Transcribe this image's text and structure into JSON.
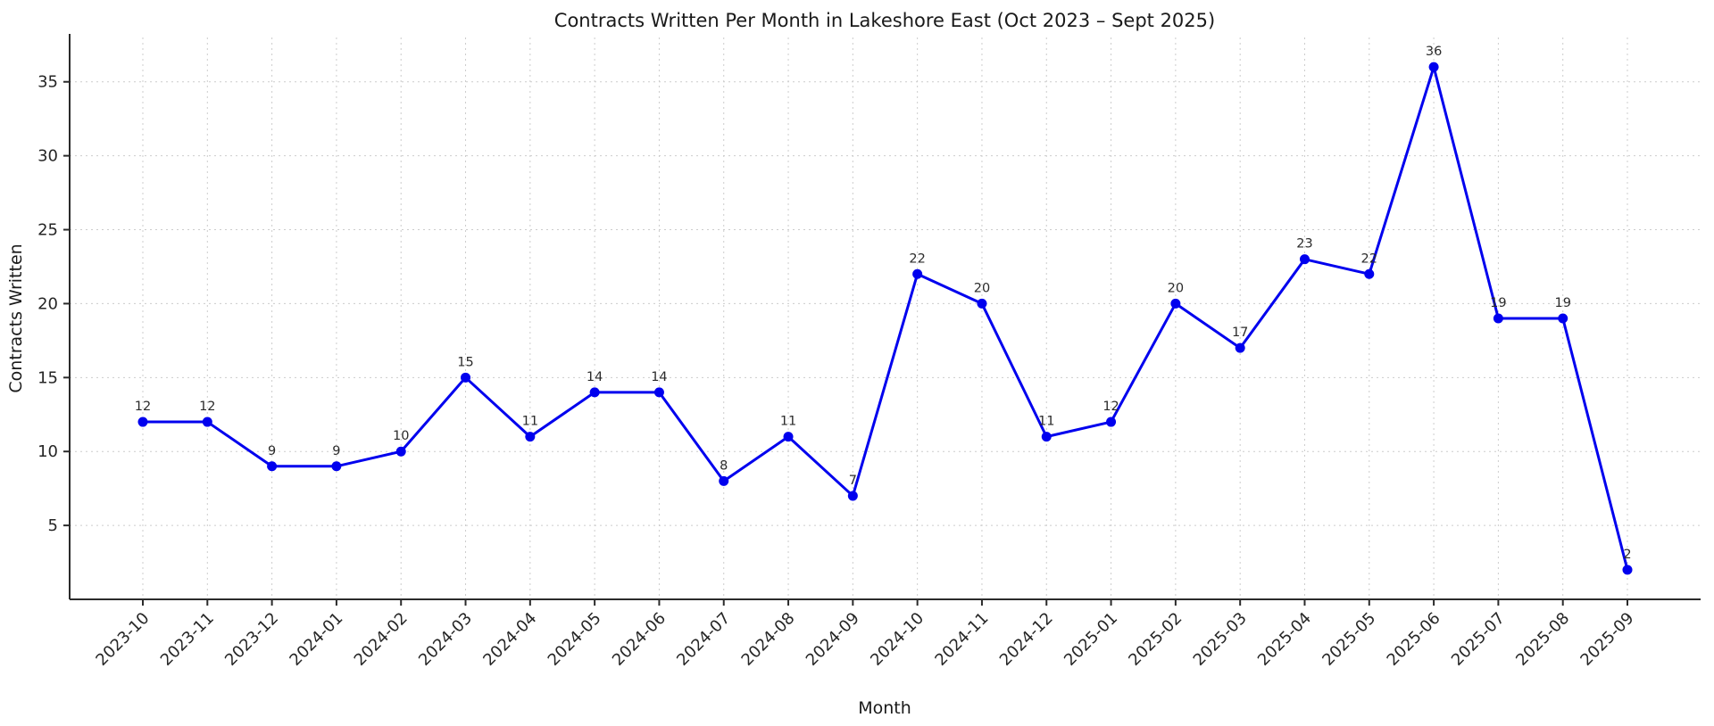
{
  "chart_data": {
    "type": "line",
    "title": "Contracts Written Per Month in Lakeshore East (Oct 2023 – Sept 2025)",
    "xlabel": "Month",
    "ylabel": "Contracts Written",
    "categories": [
      "2023-10",
      "2023-11",
      "2023-12",
      "2024-01",
      "2024-02",
      "2024-03",
      "2024-04",
      "2024-05",
      "2024-06",
      "2024-07",
      "2024-08",
      "2024-09",
      "2024-10",
      "2024-11",
      "2024-12",
      "2025-01",
      "2025-02",
      "2025-03",
      "2025-04",
      "2025-05",
      "2025-06",
      "2025-07",
      "2025-08",
      "2025-09"
    ],
    "values": [
      12,
      12,
      9,
      9,
      10,
      15,
      11,
      14,
      14,
      8,
      11,
      7,
      22,
      20,
      11,
      12,
      20,
      17,
      23,
      22,
      36,
      19,
      19,
      2
    ],
    "yticks": [
      5,
      10,
      15,
      20,
      25,
      30,
      35
    ],
    "ylim": [
      0,
      38
    ],
    "grid": true,
    "grid_style": "dotted",
    "legend_position": "none",
    "data_labels": true,
    "colors": {
      "line": "#0000ee",
      "marker": "#0000ee",
      "grid": "#cccccc",
      "spine": "#2b2b2b",
      "tick_label": "#262626",
      "value_label": "#2b2b2b"
    }
  }
}
